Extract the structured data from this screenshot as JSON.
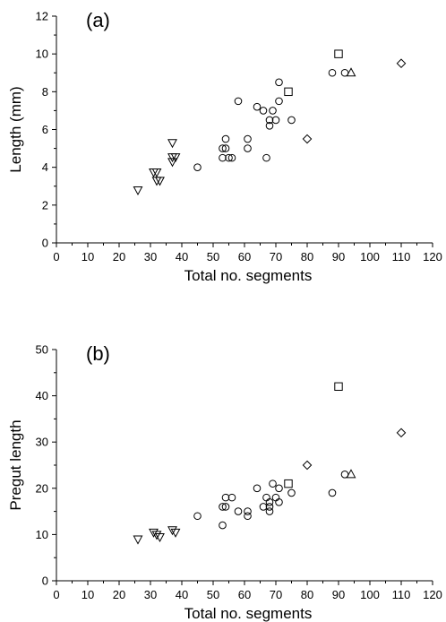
{
  "chart_data": [
    {
      "type": "scatter",
      "panel_label": "(a)",
      "xlabel": "Total no. segments",
      "ylabel": "Length (mm)",
      "xlim": [
        0,
        120
      ],
      "ylim": [
        0,
        12
      ],
      "xticks": [
        0,
        10,
        20,
        30,
        40,
        50,
        60,
        70,
        80,
        90,
        100,
        110,
        120
      ],
      "yticks": [
        0,
        2,
        4,
        6,
        8,
        10,
        12
      ],
      "grid": false,
      "series": [
        {
          "marker": "triangle-down",
          "points": [
            [
              26,
              2.8
            ],
            [
              31,
              3.75
            ],
            [
              32,
              3.75
            ],
            [
              32,
              3.3
            ],
            [
              33,
              3.3
            ],
            [
              37,
              5.3
            ],
            [
              37,
              4.3
            ],
            [
              37,
              4.55
            ],
            [
              38,
              4.55
            ]
          ]
        },
        {
          "marker": "circle",
          "points": [
            [
              45,
              4
            ],
            [
              53,
              4.5
            ],
            [
              53,
              5
            ],
            [
              54,
              5.5
            ],
            [
              54,
              5
            ],
            [
              55,
              4.5
            ],
            [
              56,
              4.5
            ],
            [
              58,
              7.5
            ],
            [
              61,
              5.5
            ],
            [
              61,
              5
            ],
            [
              64,
              7.2
            ],
            [
              66,
              7
            ],
            [
              67,
              4.5
            ],
            [
              68,
              6.2
            ],
            [
              68,
              6.5
            ],
            [
              69,
              7
            ],
            [
              70,
              6.5
            ],
            [
              71,
              7.5
            ],
            [
              71,
              8.5
            ],
            [
              75,
              6.5
            ],
            [
              88,
              9
            ],
            [
              92,
              9
            ]
          ]
        },
        {
          "marker": "square",
          "points": [
            [
              74,
              8
            ],
            [
              90,
              10
            ]
          ]
        },
        {
          "marker": "diamond",
          "points": [
            [
              80,
              5.5
            ],
            [
              110,
              9.5
            ]
          ]
        },
        {
          "marker": "triangle-up",
          "points": [
            [
              94,
              9
            ]
          ]
        }
      ]
    },
    {
      "type": "scatter",
      "panel_label": "(b)",
      "xlabel": "Total no. segments",
      "ylabel": "Pregut length",
      "xlim": [
        0,
        120
      ],
      "ylim": [
        0,
        50
      ],
      "xticks": [
        0,
        10,
        20,
        30,
        40,
        50,
        60,
        70,
        80,
        90,
        100,
        110,
        120
      ],
      "yticks": [
        0,
        10,
        20,
        30,
        40,
        50
      ],
      "grid": false,
      "series": [
        {
          "marker": "triangle-down",
          "points": [
            [
              26,
              9
            ],
            [
              31,
              10.5
            ],
            [
              32,
              10
            ],
            [
              33,
              9.5
            ],
            [
              37,
              11
            ],
            [
              38,
              10.5
            ]
          ]
        },
        {
          "marker": "circle",
          "points": [
            [
              45,
              14
            ],
            [
              53,
              12
            ],
            [
              53,
              16
            ],
            [
              54,
              18
            ],
            [
              54,
              16
            ],
            [
              56,
              18
            ],
            [
              58,
              15
            ],
            [
              61,
              15
            ],
            [
              61,
              14
            ],
            [
              64,
              20
            ],
            [
              66,
              16
            ],
            [
              67,
              18
            ],
            [
              68,
              17
            ],
            [
              68,
              16
            ],
            [
              68,
              15
            ],
            [
              69,
              21
            ],
            [
              70,
              18
            ],
            [
              71,
              20
            ],
            [
              71,
              17
            ],
            [
              75,
              19
            ],
            [
              88,
              19
            ],
            [
              92,
              23
            ]
          ]
        },
        {
          "marker": "square",
          "points": [
            [
              74,
              21
            ],
            [
              90,
              42
            ]
          ]
        },
        {
          "marker": "diamond",
          "points": [
            [
              80,
              25
            ],
            [
              110,
              32
            ]
          ]
        },
        {
          "marker": "triangle-up",
          "points": [
            [
              94,
              23
            ]
          ]
        }
      ]
    }
  ]
}
